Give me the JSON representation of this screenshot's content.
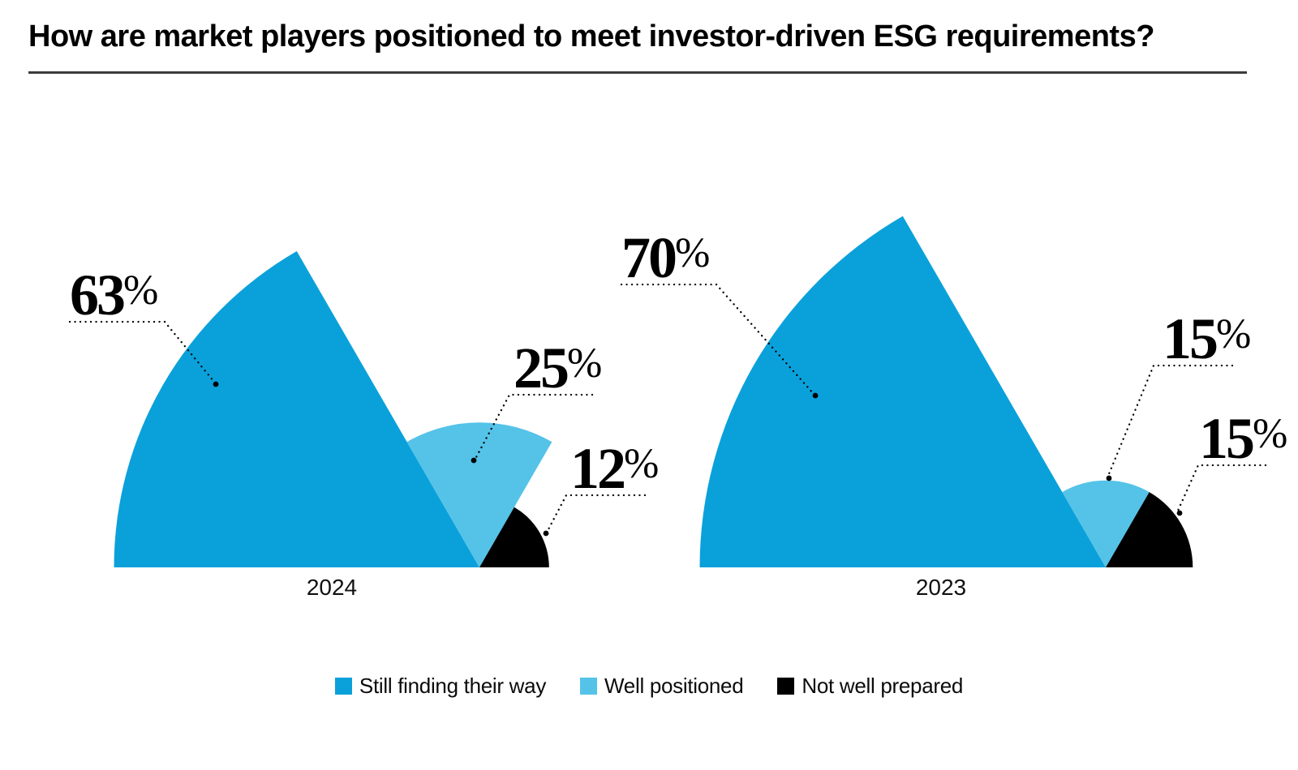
{
  "page": {
    "title": "How are market players positioned to meet investor-driven ESG requirements?"
  },
  "chart_data": {
    "type": "pie",
    "variant": "sail-fan-sectors",
    "unit": "%",
    "categories": [
      "Still finding their way",
      "Well positioned",
      "Not well prepared"
    ],
    "colors": [
      "#0AA1DB",
      "#55C3E8",
      "#000000"
    ],
    "groups": [
      {
        "label": "2024",
        "values": [
          63,
          25,
          12
        ]
      },
      {
        "label": "2023",
        "values": [
          70,
          15,
          15
        ]
      }
    ],
    "legend_position": "bottom",
    "layout_hints": {
      "sector_span_degrees": 60,
      "radius_proportional_to_value": true,
      "shared_apex_on_baseline": true,
      "annotations": "dotted leader lines from percentage labels to dots on sectors",
      "axis_line": "none"
    }
  }
}
